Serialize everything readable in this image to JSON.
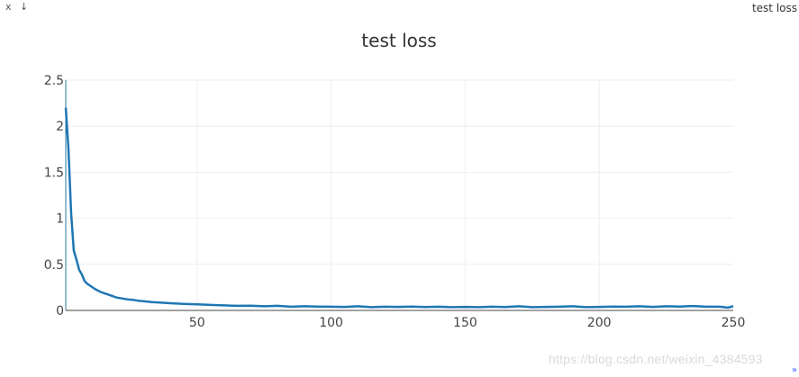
{
  "window": {
    "close_label": "x",
    "download_label": "↓",
    "title": "test loss"
  },
  "watermark": "https://blog.csdn.net/weixin_4384593",
  "resize_icon": "»",
  "colors": {
    "line": "#1f77b4",
    "grid": "#eeeeee",
    "axis": "#444444"
  },
  "chart_data": {
    "type": "line",
    "title": "test loss",
    "xlabel": "",
    "ylabel": "",
    "xlim": [
      1,
      250
    ],
    "ylim": [
      0,
      2.5
    ],
    "xticks": [
      50,
      100,
      150,
      200,
      250
    ],
    "yticks": [
      0,
      0.5,
      1,
      1.5,
      2,
      2.5
    ],
    "ytick_labels": [
      "0",
      "0.5",
      "1",
      "1.5",
      "2",
      "2.5"
    ],
    "grid": true,
    "series": [
      {
        "x": [
          1,
          2,
          3,
          4,
          5,
          6,
          7,
          8,
          9,
          10,
          12,
          14,
          16,
          18,
          20,
          22,
          24,
          26,
          28,
          30,
          33,
          36,
          40,
          45,
          50,
          55,
          60,
          65,
          70,
          75,
          80,
          85,
          90,
          95,
          100,
          105,
          110,
          115,
          120,
          125,
          130,
          135,
          140,
          145,
          150,
          155,
          160,
          165,
          170,
          175,
          180,
          185,
          190,
          195,
          200,
          205,
          210,
          215,
          220,
          225,
          230,
          235,
          240,
          245,
          248,
          250
        ],
        "y": [
          2.2,
          1.75,
          1.05,
          0.65,
          0.55,
          0.44,
          0.39,
          0.32,
          0.29,
          0.27,
          0.23,
          0.2,
          0.18,
          0.16,
          0.14,
          0.13,
          0.12,
          0.115,
          0.105,
          0.1,
          0.09,
          0.085,
          0.078,
          0.07,
          0.065,
          0.06,
          0.055,
          0.05,
          0.052,
          0.045,
          0.05,
          0.04,
          0.045,
          0.042,
          0.04,
          0.038,
          0.045,
          0.035,
          0.04,
          0.038,
          0.042,
          0.036,
          0.04,
          0.035,
          0.038,
          0.035,
          0.04,
          0.036,
          0.045,
          0.035,
          0.038,
          0.04,
          0.045,
          0.035,
          0.038,
          0.042,
          0.04,
          0.045,
          0.038,
          0.045,
          0.042,
          0.048,
          0.04,
          0.04,
          0.03,
          0.045
        ]
      }
    ]
  }
}
